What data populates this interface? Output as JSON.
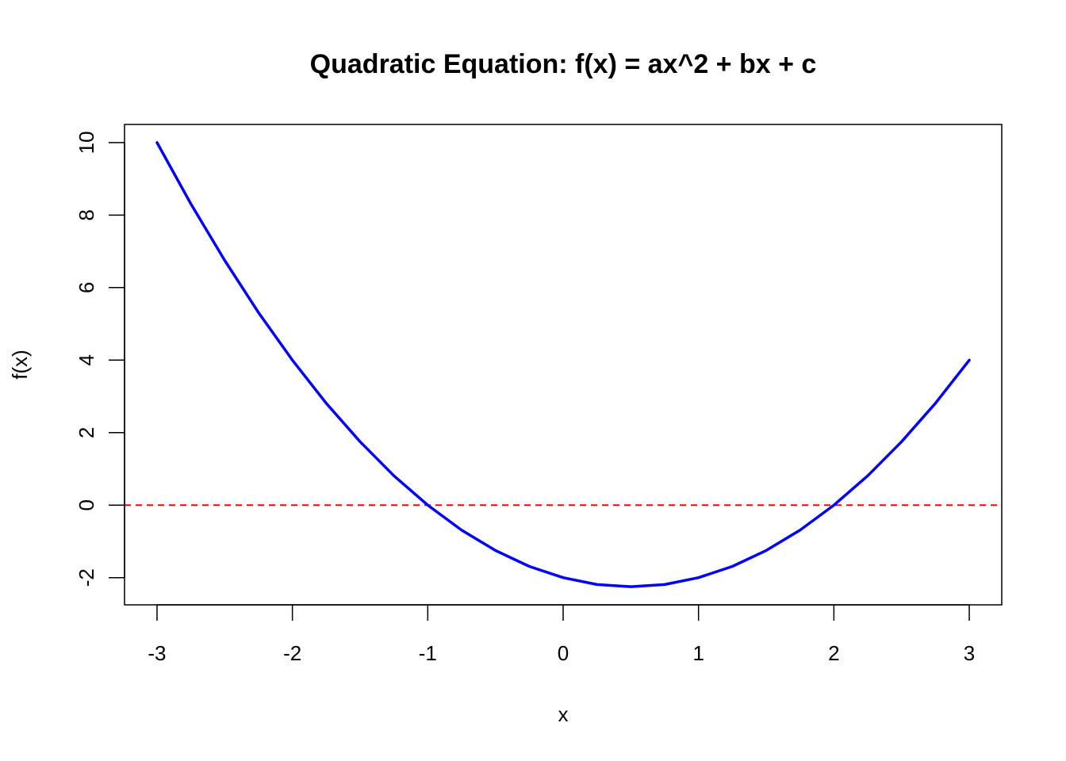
{
  "chart_data": {
    "type": "line",
    "title": "Quadratic Equation: f(x) = ax^2 + bx + c",
    "xlabel": "x",
    "ylabel": "f(x)",
    "xlim": [
      -3.24,
      3.24
    ],
    "ylim": [
      -2.75,
      10.5
    ],
    "x_ticks": [
      -3,
      -2,
      -1,
      0,
      1,
      2,
      3
    ],
    "x_tick_labels": [
      "-3",
      "-2",
      "-1",
      "0",
      "1",
      "2",
      "3"
    ],
    "y_ticks": [
      -2,
      0,
      2,
      4,
      6,
      8,
      10
    ],
    "y_tick_labels": [
      "-2",
      "0",
      "2",
      "4",
      "6",
      "8",
      "10"
    ],
    "grid": false,
    "legend": "none",
    "series": [
      {
        "color": "#0000ff",
        "line_style": "solid",
        "x": [
          -3.0,
          -2.75,
          -2.5,
          -2.25,
          -2.0,
          -1.75,
          -1.5,
          -1.25,
          -1.0,
          -0.75,
          -0.5,
          -0.25,
          0.0,
          0.25,
          0.5,
          0.75,
          1.0,
          1.25,
          1.5,
          1.75,
          2.0,
          2.25,
          2.5,
          2.75,
          3.0
        ],
        "y": [
          10.0,
          8.31,
          6.75,
          5.31,
          4.0,
          2.81,
          1.75,
          0.81,
          0.0,
          -0.69,
          -1.25,
          -1.69,
          -2.0,
          -2.19,
          -2.25,
          -2.19,
          -2.0,
          -1.69,
          -1.25,
          -0.69,
          0.0,
          0.81,
          1.75,
          2.81,
          4.0
        ]
      }
    ],
    "reference_lines": [
      {
        "orientation": "horizontal",
        "y": 0,
        "color": "#ff0000",
        "line_style": "dashed"
      }
    ]
  }
}
